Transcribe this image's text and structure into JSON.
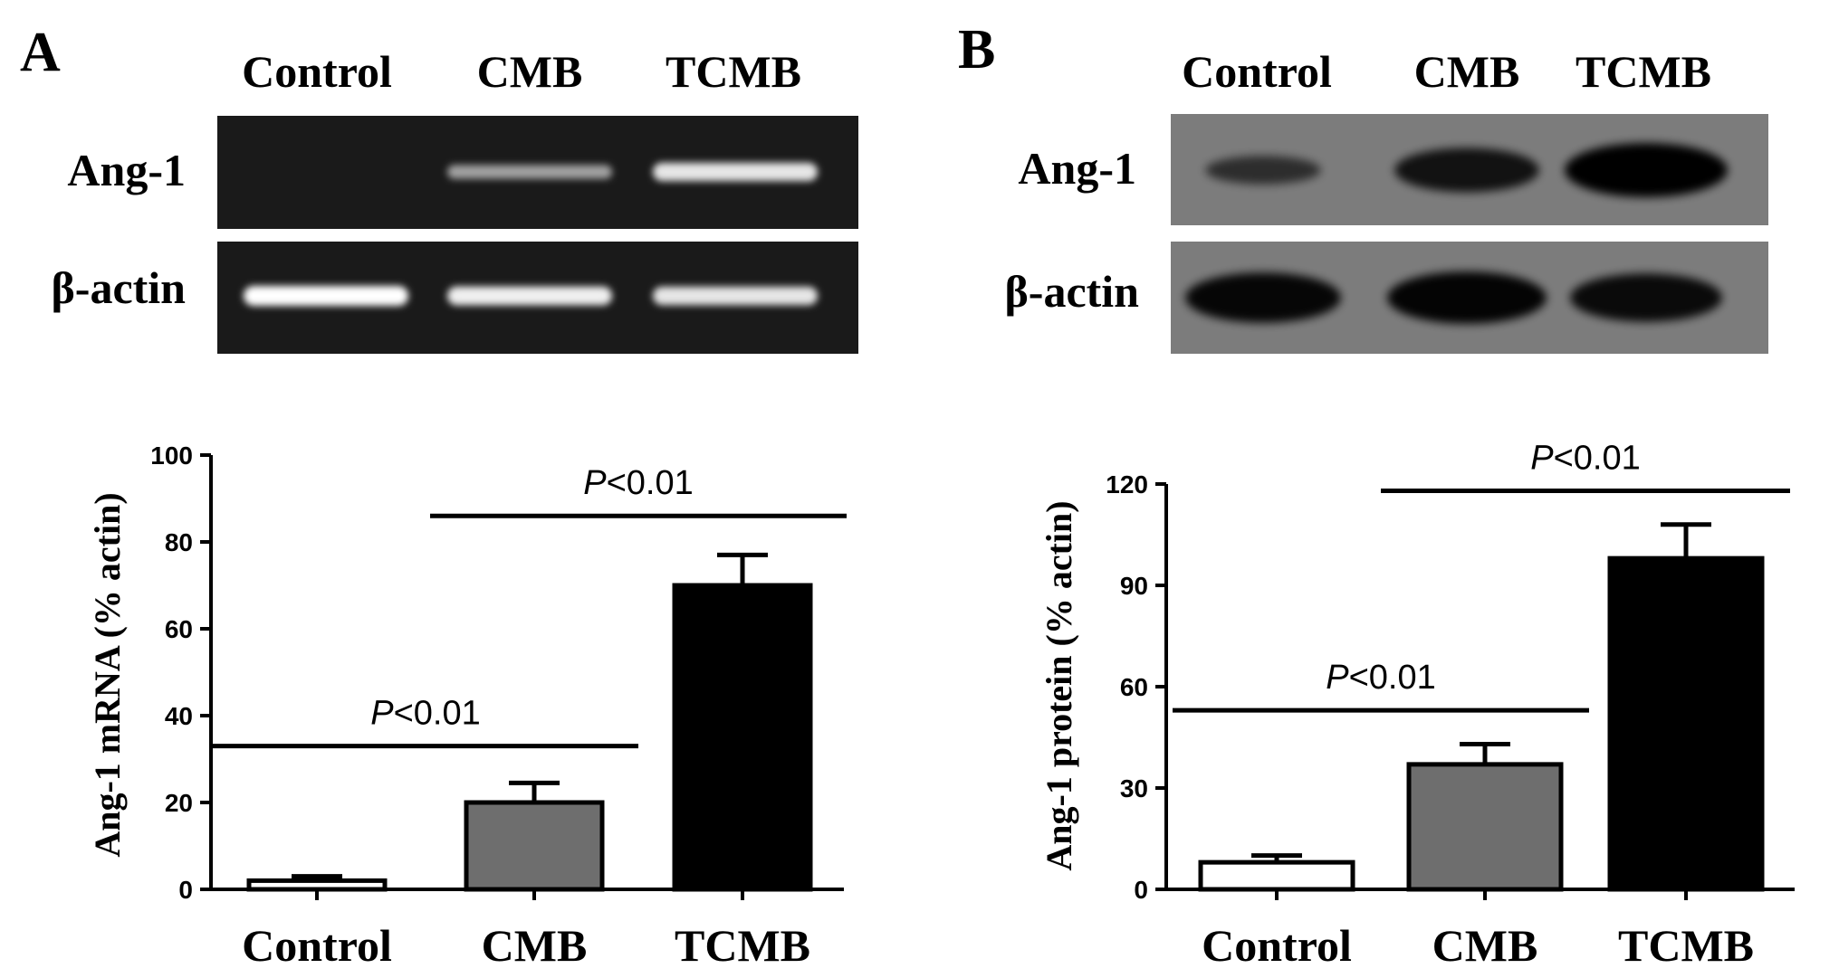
{
  "figure": {
    "panels": [
      {
        "letter": "A",
        "blot": {
          "style": "gel",
          "background": "#1a1a1a",
          "band_color": "#ffffff",
          "columns": [
            "Control",
            "CMB",
            "TCMB"
          ],
          "rows": [
            {
              "label": "Ang-1",
              "intensities": [
                0.0,
                0.45,
                0.85
              ]
            },
            {
              "label": "β-actin",
              "intensities": [
                1.0,
                0.9,
                0.85
              ]
            }
          ]
        }
      },
      {
        "letter": "B",
        "blot": {
          "style": "western",
          "background": "#7c7c7c",
          "band_color": "#000000",
          "columns": [
            "Control",
            "CMB",
            "TCMB"
          ],
          "rows": [
            {
              "label": "Ang-1",
              "intensities": [
                0.35,
                0.75,
                1.0
              ]
            },
            {
              "label": "β-actin",
              "intensities": [
                0.9,
                0.95,
                0.85
              ]
            }
          ]
        }
      }
    ]
  },
  "chart_data": [
    {
      "type": "bar",
      "panel": "A",
      "categories": [
        "Control",
        "CMB",
        "TCMB"
      ],
      "values": [
        2,
        20,
        70
      ],
      "errors": [
        1,
        4.5,
        7
      ],
      "bar_colors": [
        "#ffffff",
        "#6e6e6e",
        "#000000"
      ],
      "xlabel": "",
      "ylabel": "Ang-1 mRNA (% actin)",
      "ylim": [
        0,
        100
      ],
      "yticks": [
        0,
        20,
        40,
        60,
        80,
        100
      ],
      "grid": false,
      "significance": [
        {
          "from": 0,
          "to": 1,
          "italic": "P",
          "text": "<0.01",
          "y": 33
        },
        {
          "from": 1,
          "to": 2,
          "italic": "P",
          "text": "<0.01",
          "y": 86
        }
      ]
    },
    {
      "type": "bar",
      "panel": "B",
      "categories": [
        "Control",
        "CMB",
        "TCMB"
      ],
      "values": [
        8,
        37,
        98
      ],
      "errors": [
        2,
        6,
        10
      ],
      "bar_colors": [
        "#ffffff",
        "#6e6e6e",
        "#000000"
      ],
      "xlabel": "",
      "ylabel": "Ang-1 protein (% actin)",
      "ylim": [
        0,
        120
      ],
      "yticks": [
        0,
        30,
        60,
        90,
        120
      ],
      "grid": false,
      "significance": [
        {
          "from": 0,
          "to": 1,
          "italic": "P",
          "text": "<0.01",
          "y": 53
        },
        {
          "from": 1,
          "to": 2,
          "italic": "P",
          "text": "<0.01",
          "y": 118
        }
      ]
    }
  ]
}
